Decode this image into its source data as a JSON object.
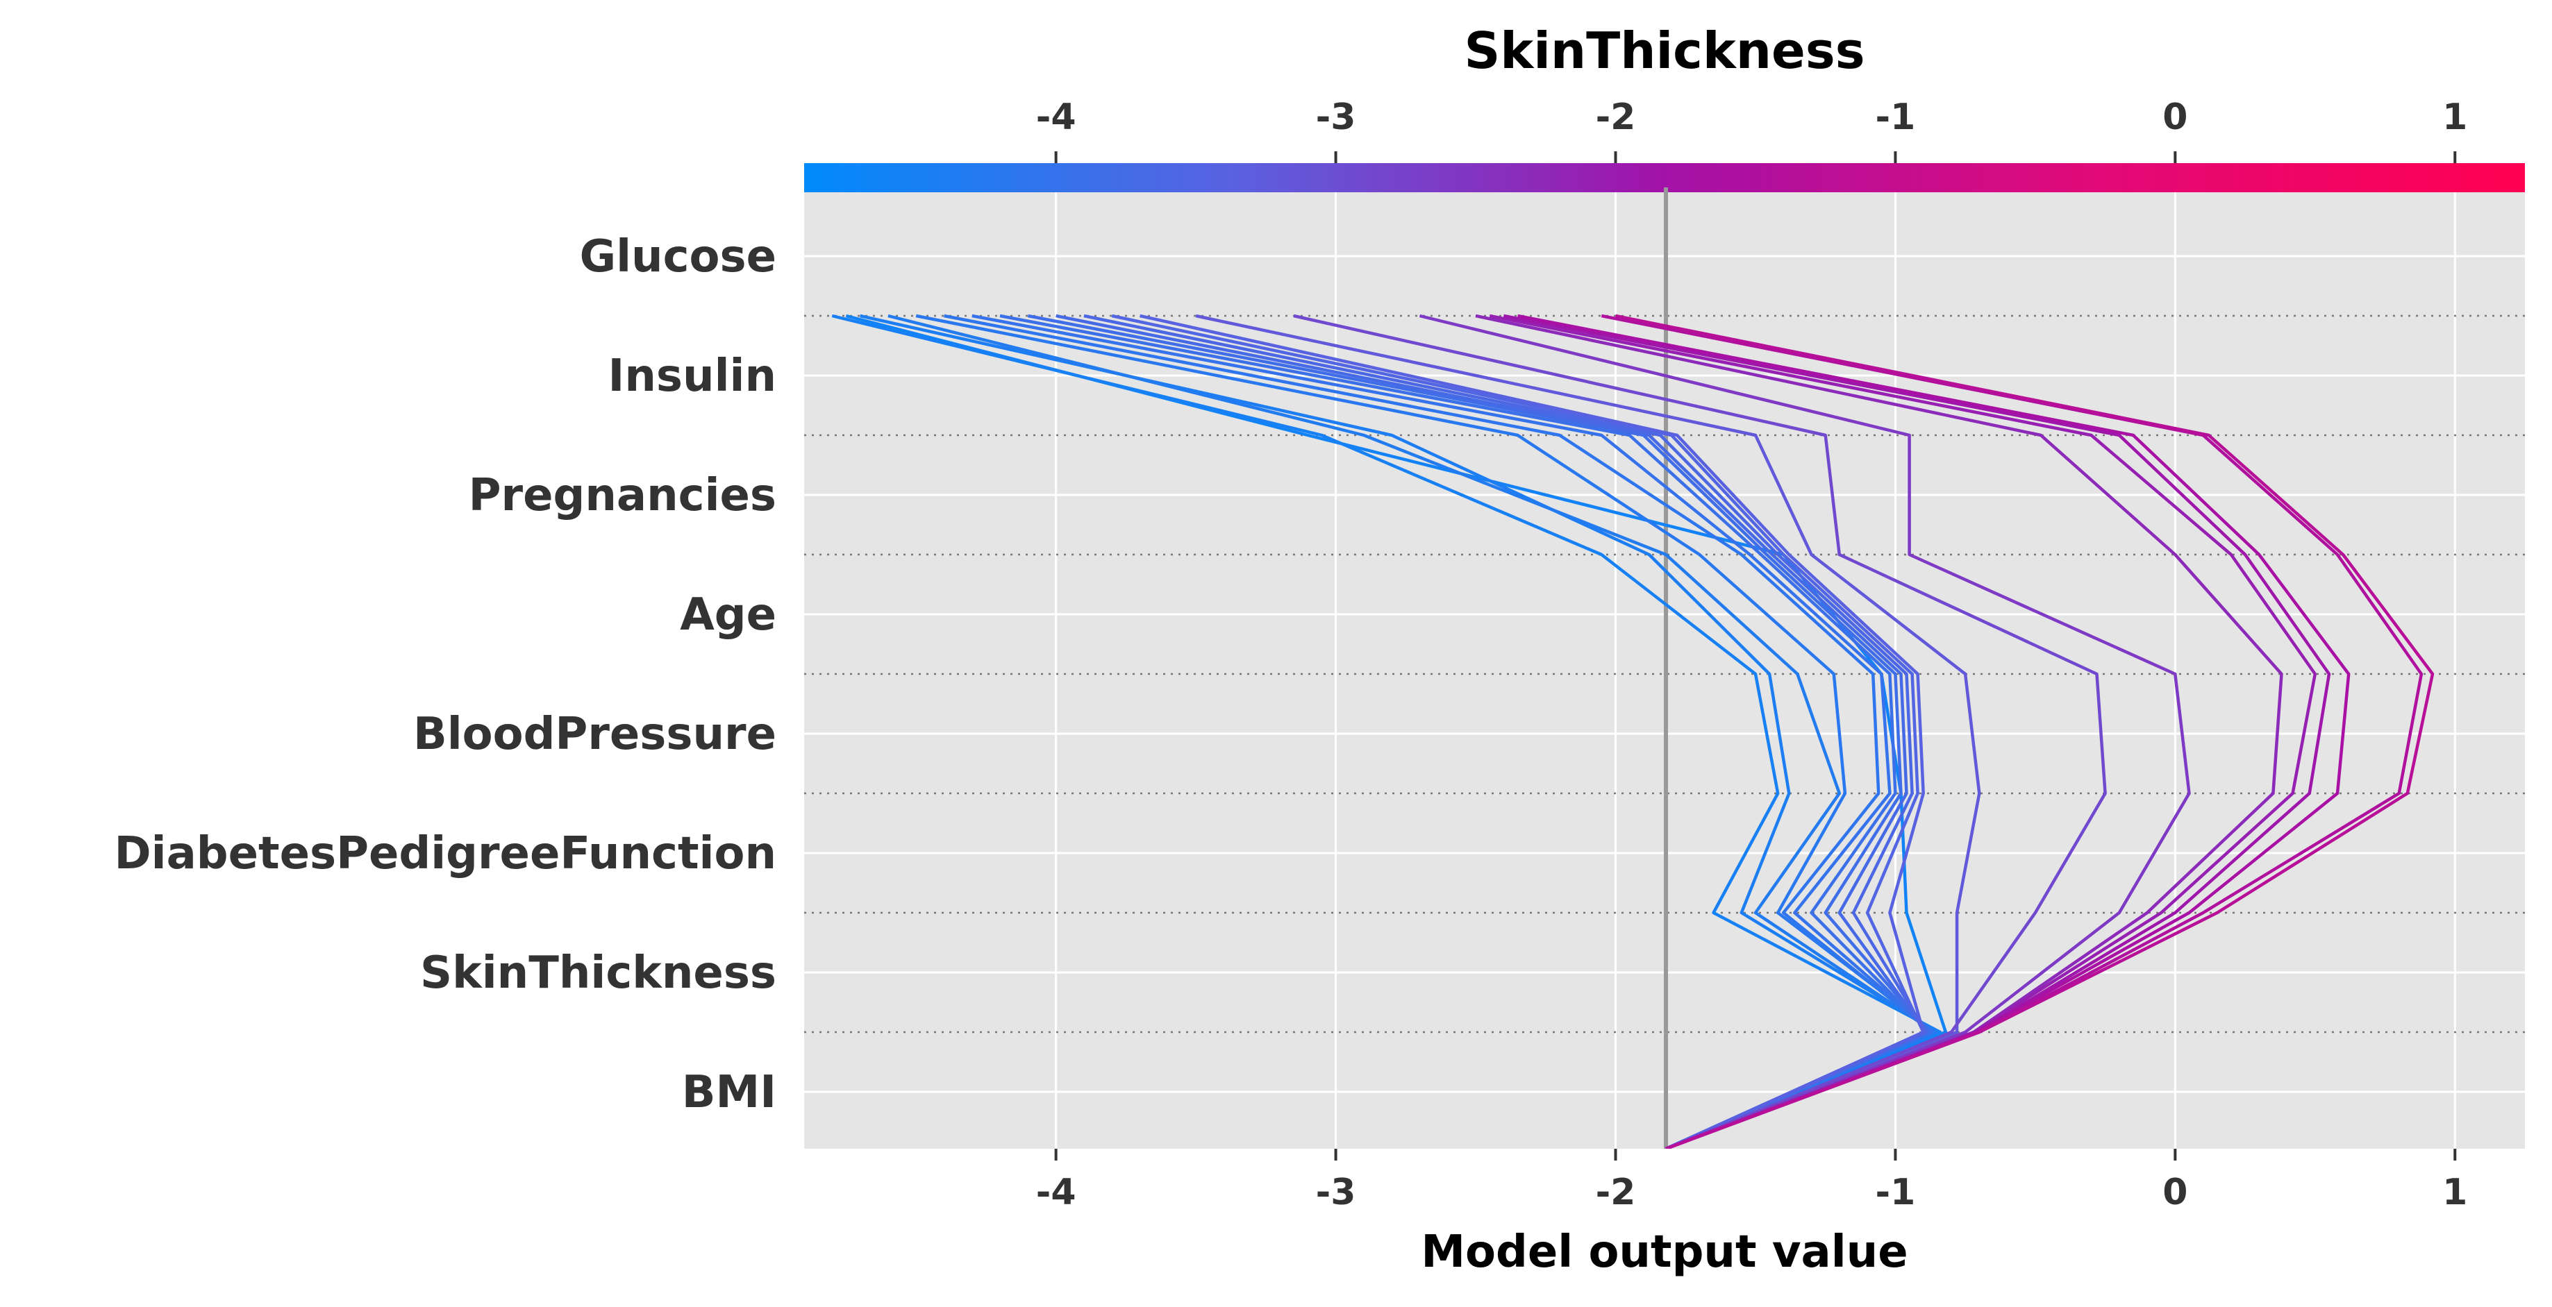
{
  "chart_data": {
    "type": "line",
    "title": "SkinThickness",
    "xlabel": "Model output value",
    "ylabel": "",
    "xlim": [
      -4.9,
      1.25
    ],
    "xticks": [
      -4,
      -3,
      -2,
      -1,
      0,
      1
    ],
    "base_value": -1.82,
    "features": [
      "Glucose",
      "Insulin",
      "Pregnancies",
      "Age",
      "BloodPressure",
      "DiabetesPedigreeFunction",
      "SkinThickness",
      "BMI"
    ],
    "colorbar": {
      "feature": "SkinThickness",
      "range": [
        -4.9,
        1.25
      ],
      "gradient": [
        "#008bfb",
        "#5a61e0",
        "#a312a8",
        "#e10a78",
        "#ff0052"
      ]
    },
    "grid": true,
    "series": [
      {
        "color_value": -4.6,
        "values": [
          -1.82,
          -0.82,
          -0.96,
          -0.98,
          -1.05,
          -1.4,
          -3.1,
          -4.75
        ]
      },
      {
        "color_value": -4.5,
        "values": [
          -1.82,
          -0.84,
          -1.65,
          -1.42,
          -1.5,
          -2.05,
          -3.05,
          -4.8
        ]
      },
      {
        "color_value": -4.4,
        "values": [
          -1.82,
          -0.85,
          -1.55,
          -1.38,
          -1.45,
          -1.88,
          -2.8,
          -4.7
        ]
      },
      {
        "color_value": -4.3,
        "values": [
          -1.82,
          -0.86,
          -1.5,
          -1.2,
          -1.35,
          -1.82,
          -2.9,
          -4.6
        ]
      },
      {
        "color_value": -4.2,
        "values": [
          -1.82,
          -0.86,
          -1.42,
          -1.18,
          -1.22,
          -1.7,
          -2.35,
          -4.5
        ]
      },
      {
        "color_value": -4.1,
        "values": [
          -1.82,
          -0.87,
          -1.4,
          -1.06,
          -1.08,
          -1.55,
          -2.2,
          -4.4
        ]
      },
      {
        "color_value": -4.0,
        "values": [
          -1.82,
          -0.87,
          -1.36,
          -1.02,
          -1.05,
          -1.52,
          -2.05,
          -4.3
        ]
      },
      {
        "color_value": -3.9,
        "values": [
          -1.82,
          -0.88,
          -1.3,
          -1.0,
          -1.02,
          -1.48,
          -1.95,
          -4.2
        ]
      },
      {
        "color_value": -3.8,
        "values": [
          -1.82,
          -0.88,
          -1.25,
          -0.98,
          -1.0,
          -1.46,
          -1.9,
          -4.1
        ]
      },
      {
        "color_value": -3.7,
        "values": [
          -1.82,
          -0.89,
          -1.2,
          -0.96,
          -0.98,
          -1.44,
          -1.88,
          -4.0
        ]
      },
      {
        "color_value": -3.6,
        "values": [
          -1.82,
          -0.89,
          -1.15,
          -0.94,
          -0.96,
          -1.42,
          -1.84,
          -3.9
        ]
      },
      {
        "color_value": -3.5,
        "values": [
          -1.82,
          -0.9,
          -1.1,
          -0.92,
          -0.94,
          -1.4,
          -1.8,
          -3.8
        ]
      },
      {
        "color_value": -3.4,
        "values": [
          -1.82,
          -0.9,
          -1.02,
          -0.9,
          -0.92,
          -1.38,
          -1.78,
          -3.7
        ]
      },
      {
        "color_value": -3.2,
        "values": [
          -1.82,
          -0.78,
          -0.78,
          -0.7,
          -0.75,
          -1.3,
          -1.5,
          -3.5
        ]
      },
      {
        "color_value": -2.9,
        "values": [
          -1.82,
          -0.8,
          -0.5,
          -0.25,
          -0.28,
          -1.2,
          -1.25,
          -3.15
        ]
      },
      {
        "color_value": -2.6,
        "values": [
          -1.82,
          -0.75,
          -0.2,
          0.05,
          0.0,
          -0.95,
          -0.95,
          -2.7
        ]
      },
      {
        "color_value": -2.3,
        "values": [
          -1.82,
          -0.72,
          -0.1,
          0.35,
          0.38,
          0.0,
          -0.48,
          -2.5
        ]
      },
      {
        "color_value": -2.1,
        "values": [
          -1.82,
          -0.72,
          -0.05,
          0.42,
          0.5,
          0.2,
          -0.3,
          -2.45
        ]
      },
      {
        "color_value": -1.9,
        "values": [
          -1.82,
          -0.71,
          0.0,
          0.48,
          0.55,
          0.25,
          -0.2,
          -2.4
        ]
      },
      {
        "color_value": -1.7,
        "values": [
          -1.82,
          -0.71,
          0.05,
          0.58,
          0.62,
          0.3,
          -0.15,
          -2.35
        ]
      },
      {
        "color_value": -1.5,
        "values": [
          -1.82,
          -0.7,
          0.1,
          0.8,
          0.88,
          0.58,
          0.1,
          -2.05
        ]
      },
      {
        "color_value": -1.3,
        "values": [
          -1.82,
          -0.7,
          0.15,
          0.83,
          0.92,
          0.6,
          0.12,
          -2.0
        ]
      }
    ]
  }
}
